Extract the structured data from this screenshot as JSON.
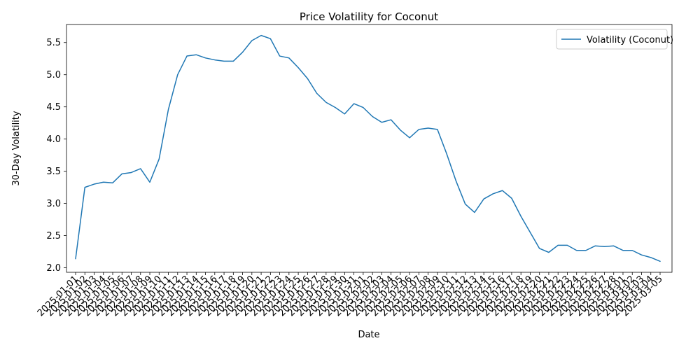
{
  "chart_data": {
    "type": "line",
    "title": "Price Volatility for Coconut",
    "xlabel": "Date",
    "ylabel": "30-Day Volatility",
    "ylim": [
      1.93,
      5.78
    ],
    "yticks": [
      2.0,
      2.5,
      3.0,
      3.5,
      4.0,
      4.5,
      5.0,
      5.5
    ],
    "legend_position": "top-right",
    "grid": false,
    "line_color": "#1f77b4",
    "x": [
      "2025-01-01",
      "2025-01-02",
      "2025-01-03",
      "2025-01-04",
      "2025-01-05",
      "2025-01-06",
      "2025-01-07",
      "2025-01-08",
      "2025-01-09",
      "2025-01-10",
      "2025-01-11",
      "2025-01-12",
      "2025-01-13",
      "2025-01-14",
      "2025-01-15",
      "2025-01-16",
      "2025-01-17",
      "2025-01-18",
      "2025-01-19",
      "2025-01-20",
      "2025-01-21",
      "2025-01-22",
      "2025-01-23",
      "2025-01-24",
      "2025-01-25",
      "2025-01-26",
      "2025-01-27",
      "2025-01-28",
      "2025-01-29",
      "2025-01-30",
      "2025-01-31",
      "2025-02-01",
      "2025-02-02",
      "2025-02-03",
      "2025-02-04",
      "2025-02-05",
      "2025-02-06",
      "2025-02-07",
      "2025-02-08",
      "2025-02-09",
      "2025-02-10",
      "2025-02-11",
      "2025-02-12",
      "2025-02-13",
      "2025-02-14",
      "2025-02-15",
      "2025-02-16",
      "2025-02-17",
      "2025-02-18",
      "2025-02-19",
      "2025-02-20",
      "2025-02-21",
      "2025-02-22",
      "2025-02-23",
      "2025-02-24",
      "2025-02-25",
      "2025-02-26",
      "2025-02-27",
      "2025-02-28",
      "2025-03-01",
      "2025-03-02",
      "2025-03-03",
      "2025-03-04",
      "2025-03-05"
    ],
    "series": [
      {
        "name": "Volatility (Coconut)",
        "values": [
          2.14,
          3.25,
          3.3,
          3.33,
          3.32,
          3.46,
          3.48,
          3.54,
          3.33,
          3.69,
          4.46,
          5.0,
          5.29,
          5.31,
          5.26,
          5.23,
          5.21,
          5.21,
          5.35,
          5.53,
          5.61,
          5.56,
          5.29,
          5.26,
          5.11,
          4.94,
          4.71,
          4.57,
          4.49,
          4.39,
          4.55,
          4.49,
          4.35,
          4.26,
          4.3,
          4.14,
          4.02,
          4.15,
          4.17,
          4.15,
          3.77,
          3.35,
          2.99,
          2.86,
          3.07,
          3.15,
          3.2,
          3.08,
          2.8,
          2.55,
          2.3,
          2.24,
          2.35,
          2.35,
          2.27,
          2.27,
          2.34,
          2.33,
          2.34,
          2.27,
          2.27,
          2.2,
          2.16,
          2.1
        ]
      }
    ]
  }
}
